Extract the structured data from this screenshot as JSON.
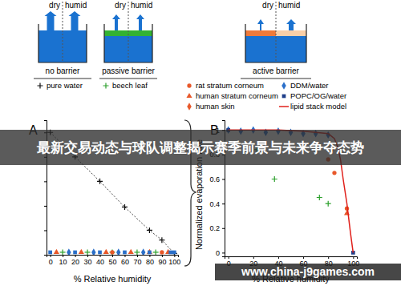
{
  "diagram": {
    "panels": [
      {
        "label": "no barrier",
        "left": "dry",
        "right": "humid"
      },
      {
        "label": "passive barrier",
        "left": "dry",
        "right": "humid"
      },
      {
        "label": "active barrier",
        "left": "dry",
        "right": "humid"
      }
    ]
  },
  "chart_data": [
    {
      "type": "scatter",
      "title": "A",
      "x_label": "% Relative humidity",
      "xlim": [
        -3,
        103
      ],
      "xticks": [
        0,
        10,
        20,
        30,
        40,
        50,
        60,
        70,
        80,
        90,
        100
      ],
      "ylim": [
        0,
        1.1
      ],
      "yticks": [
        0,
        0.2,
        0.4,
        0.6,
        0.8,
        1
      ],
      "tick_labels": "x",
      "series": [
        {
          "name": "pure water",
          "color": "#111111",
          "marker": "plus",
          "line_style": "dashed",
          "x": [
            0,
            20,
            40,
            60,
            80,
            90,
            100
          ],
          "values": [
            1,
            0.8,
            0.6,
            0.39,
            0.2,
            0.12,
            0.01
          ]
        },
        {
          "name": "beech leaf",
          "color": "#2ca02c",
          "marker": "plus",
          "x": [
            10,
            30,
            50,
            70,
            85
          ],
          "values": [
            0.02,
            0.02,
            0.02,
            0.02,
            0.02
          ]
        },
        {
          "name": "rat stratum corneum",
          "color": "#e8582a",
          "marker": "circle",
          "x": [
            50,
            90
          ],
          "values": [
            0.02,
            0.02
          ]
        },
        {
          "name": "human stratum corneum",
          "color": "#e8582a",
          "marker": "triangle",
          "x": [
            5,
            25,
            45,
            65,
            80,
            95
          ],
          "values": [
            0.02,
            0.02,
            0.02,
            0.02,
            0.02,
            0.02
          ]
        },
        {
          "name": "DDM/water",
          "color": "#2a6fc9",
          "marker": "diamond",
          "x": [
            15,
            35,
            55,
            75
          ],
          "values": [
            0.02,
            0.02,
            0.02,
            0.02
          ]
        },
        {
          "name": "POPC/OG/water",
          "color": "#2a6fc9",
          "marker": "square",
          "x": [
            0,
            20,
            40,
            60,
            80,
            97,
            100
          ],
          "values": [
            0.02,
            0.02,
            0.02,
            0.02,
            0.02,
            0.02,
            0.02
          ]
        }
      ]
    },
    {
      "type": "scatter",
      "title": "B",
      "x_label": "% Relative humidity",
      "y_label": "Normalized evaporation rate",
      "xlim": [
        -3,
        103
      ],
      "xticks": [
        0,
        20,
        40,
        60,
        80,
        100
      ],
      "ylim": [
        -0.03,
        1.08
      ],
      "yticks": [
        0,
        0.2,
        0.4,
        0.6,
        0.8,
        1
      ],
      "series": [
        {
          "name": "rat stratum corneum",
          "color": "#e8582a",
          "marker": "circle",
          "x": [
            80,
            85,
            95
          ],
          "values": [
            0.76,
            0.65,
            0.36
          ]
        },
        {
          "name": "human stratum corneum",
          "color": "#e8582a",
          "marker": "triangle",
          "x": [
            95
          ],
          "values": [
            0.32
          ]
        },
        {
          "name": "human skin",
          "color": "#e8582a",
          "marker": "diamond",
          "x": [
            83
          ],
          "values": [
            0.85
          ]
        },
        {
          "name": "DDM/water",
          "color": "#2a6fc9",
          "marker": "diamond",
          "x": [
            0,
            10,
            20,
            30,
            40,
            50,
            60,
            70,
            80
          ],
          "values": [
            1.0,
            0.99,
            1.0,
            0.98,
            0.99,
            0.98,
            0.97,
            0.97,
            0.96
          ]
        },
        {
          "name": "POPC/OG/water",
          "color": "#1f3f8a",
          "marker": "square",
          "x": [
            0,
            100
          ],
          "values": [
            1.0,
            0.0
          ]
        },
        {
          "name": "lipid stack model",
          "color": "#e0201b",
          "type": "line",
          "line_style": "solid",
          "x": [
            0,
            20,
            40,
            60,
            80,
            85,
            88,
            90,
            92,
            95,
            98,
            100
          ],
          "values": [
            1,
            1,
            1,
            0.99,
            0.97,
            0.93,
            0.85,
            0.75,
            0.6,
            0.4,
            0.15,
            0
          ]
        },
        {
          "name": "beech leaf",
          "color": "#2ca02c",
          "marker": "plus",
          "x": [
            23,
            37,
            73,
            80
          ],
          "values": [
            0.84,
            0.6,
            0.45,
            0.4
          ]
        }
      ]
    }
  ],
  "overlay": {
    "banner": "最新交易动态与球队调整揭示赛季前景与未来争夺态势",
    "watermark": "www.china-j9games.com"
  }
}
